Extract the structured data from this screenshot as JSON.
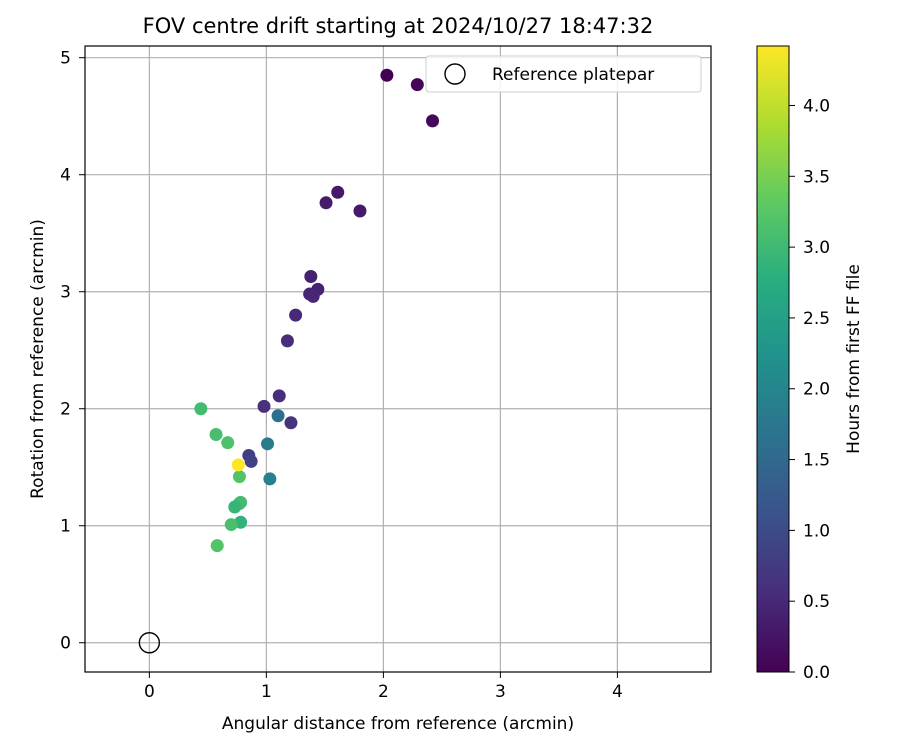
{
  "chart_data": {
    "type": "scatter",
    "title": "FOV centre drift starting at 2024/10/27 18:47:32",
    "xlabel": "Angular distance from reference (arcmin)",
    "ylabel": "Rotation from reference (arcmin)",
    "xlim": [
      -0.55,
      4.8
    ],
    "ylim": [
      -0.25,
      5.1
    ],
    "xticks": [
      0,
      1,
      2,
      3,
      4
    ],
    "yticks": [
      0,
      1,
      2,
      3,
      4,
      5
    ],
    "grid": true,
    "legend": {
      "placement": "top-right",
      "entries": [
        "Reference platepar"
      ]
    },
    "reference_point": {
      "name": "Reference platepar",
      "x": 0,
      "y": 0
    },
    "colorbar": {
      "label": "Hours from first FF file",
      "colormap": "viridis",
      "range": [
        0.0,
        4.42
      ],
      "ticks": [
        "0.0",
        "0.5",
        "1.0",
        "1.5",
        "2.0",
        "2.5",
        "3.0",
        "3.5",
        "4.0"
      ]
    },
    "points": [
      {
        "x": 2.03,
        "y": 4.85,
        "c": 0.0
      },
      {
        "x": 2.29,
        "y": 4.77,
        "c": 0.05
      },
      {
        "x": 2.42,
        "y": 4.46,
        "c": 0.1
      },
      {
        "x": 1.61,
        "y": 3.85,
        "c": 0.3
      },
      {
        "x": 1.51,
        "y": 3.76,
        "c": 0.35
      },
      {
        "x": 1.8,
        "y": 3.69,
        "c": 0.32
      },
      {
        "x": 1.38,
        "y": 3.13,
        "c": 0.4
      },
      {
        "x": 1.44,
        "y": 3.02,
        "c": 0.42
      },
      {
        "x": 1.37,
        "y": 2.98,
        "c": 0.45
      },
      {
        "x": 1.4,
        "y": 2.96,
        "c": 0.48
      },
      {
        "x": 1.25,
        "y": 2.8,
        "c": 0.5
      },
      {
        "x": 1.18,
        "y": 2.58,
        "c": 0.55
      },
      {
        "x": 1.11,
        "y": 2.11,
        "c": 0.6
      },
      {
        "x": 0.98,
        "y": 2.02,
        "c": 0.62
      },
      {
        "x": 1.21,
        "y": 1.88,
        "c": 0.65
      },
      {
        "x": 1.1,
        "y": 1.94,
        "c": 1.6
      },
      {
        "x": 1.01,
        "y": 1.7,
        "c": 1.8
      },
      {
        "x": 0.85,
        "y": 1.6,
        "c": 0.8
      },
      {
        "x": 0.87,
        "y": 1.55,
        "c": 0.85
      },
      {
        "x": 1.03,
        "y": 1.4,
        "c": 1.9
      },
      {
        "x": 0.44,
        "y": 2.0,
        "c": 3.05
      },
      {
        "x": 0.57,
        "y": 1.78,
        "c": 3.1
      },
      {
        "x": 0.67,
        "y": 1.71,
        "c": 3.15
      },
      {
        "x": 0.77,
        "y": 1.42,
        "c": 3.2
      },
      {
        "x": 0.77,
        "y": 1.19,
        "c": 3.0
      },
      {
        "x": 0.78,
        "y": 1.2,
        "c": 3.05
      },
      {
        "x": 0.73,
        "y": 1.16,
        "c": 2.9
      },
      {
        "x": 0.78,
        "y": 1.03,
        "c": 2.85
      },
      {
        "x": 0.7,
        "y": 1.01,
        "c": 3.1
      },
      {
        "x": 0.58,
        "y": 0.83,
        "c": 3.2
      },
      {
        "x": 0.76,
        "y": 1.52,
        "c": 4.42
      }
    ]
  }
}
